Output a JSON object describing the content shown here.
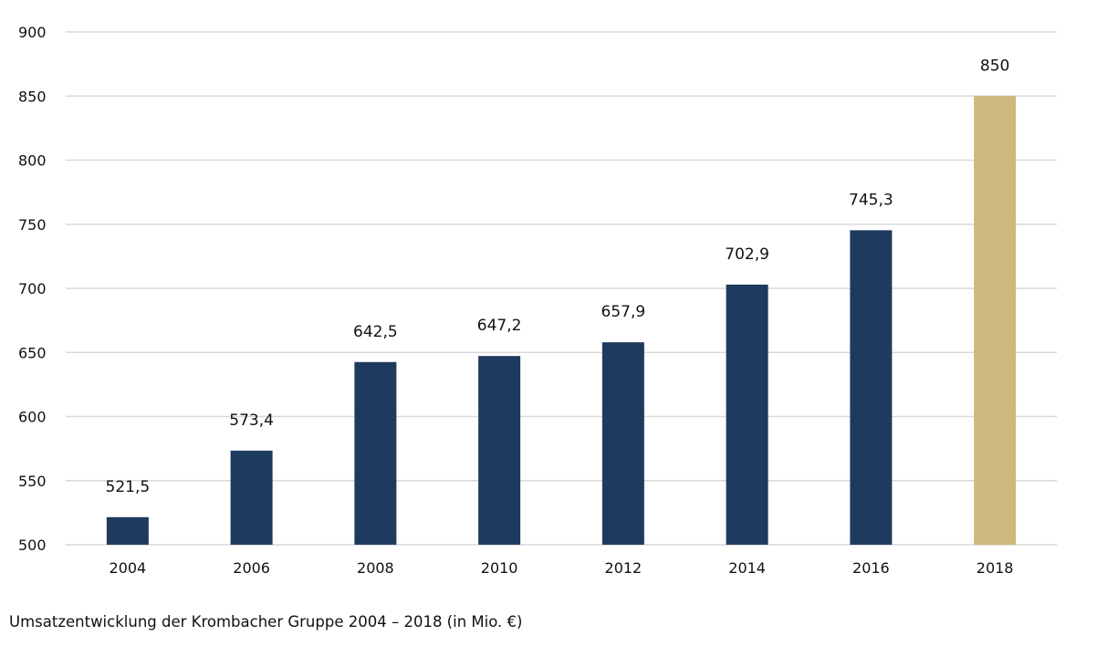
{
  "chart_data": {
    "type": "bar",
    "categories": [
      "2004",
      "2006",
      "2008",
      "2010",
      "2012",
      "2014",
      "2016",
      "2018"
    ],
    "values": [
      521.5,
      573.4,
      642.5,
      647.2,
      657.9,
      702.9,
      745.3,
      850
    ],
    "value_labels": [
      "521,5",
      "573,4",
      "642,5",
      "647,2",
      "657,9",
      "702,9",
      "745,3",
      "850"
    ],
    "ylim": [
      500,
      900
    ],
    "yticks": [
      500,
      550,
      600,
      650,
      700,
      750,
      800,
      850,
      900
    ],
    "grid": true,
    "xlabel": "",
    "ylabel": "",
    "colors": {
      "bar": "#1f3a5f",
      "highlight": "#cfb87e",
      "grid": "#d9d9d9"
    },
    "highlight_category": "2018"
  },
  "caption": "Umsatzentwicklung der Krombacher Gruppe 2004 – 2018 (in Mio. €)"
}
